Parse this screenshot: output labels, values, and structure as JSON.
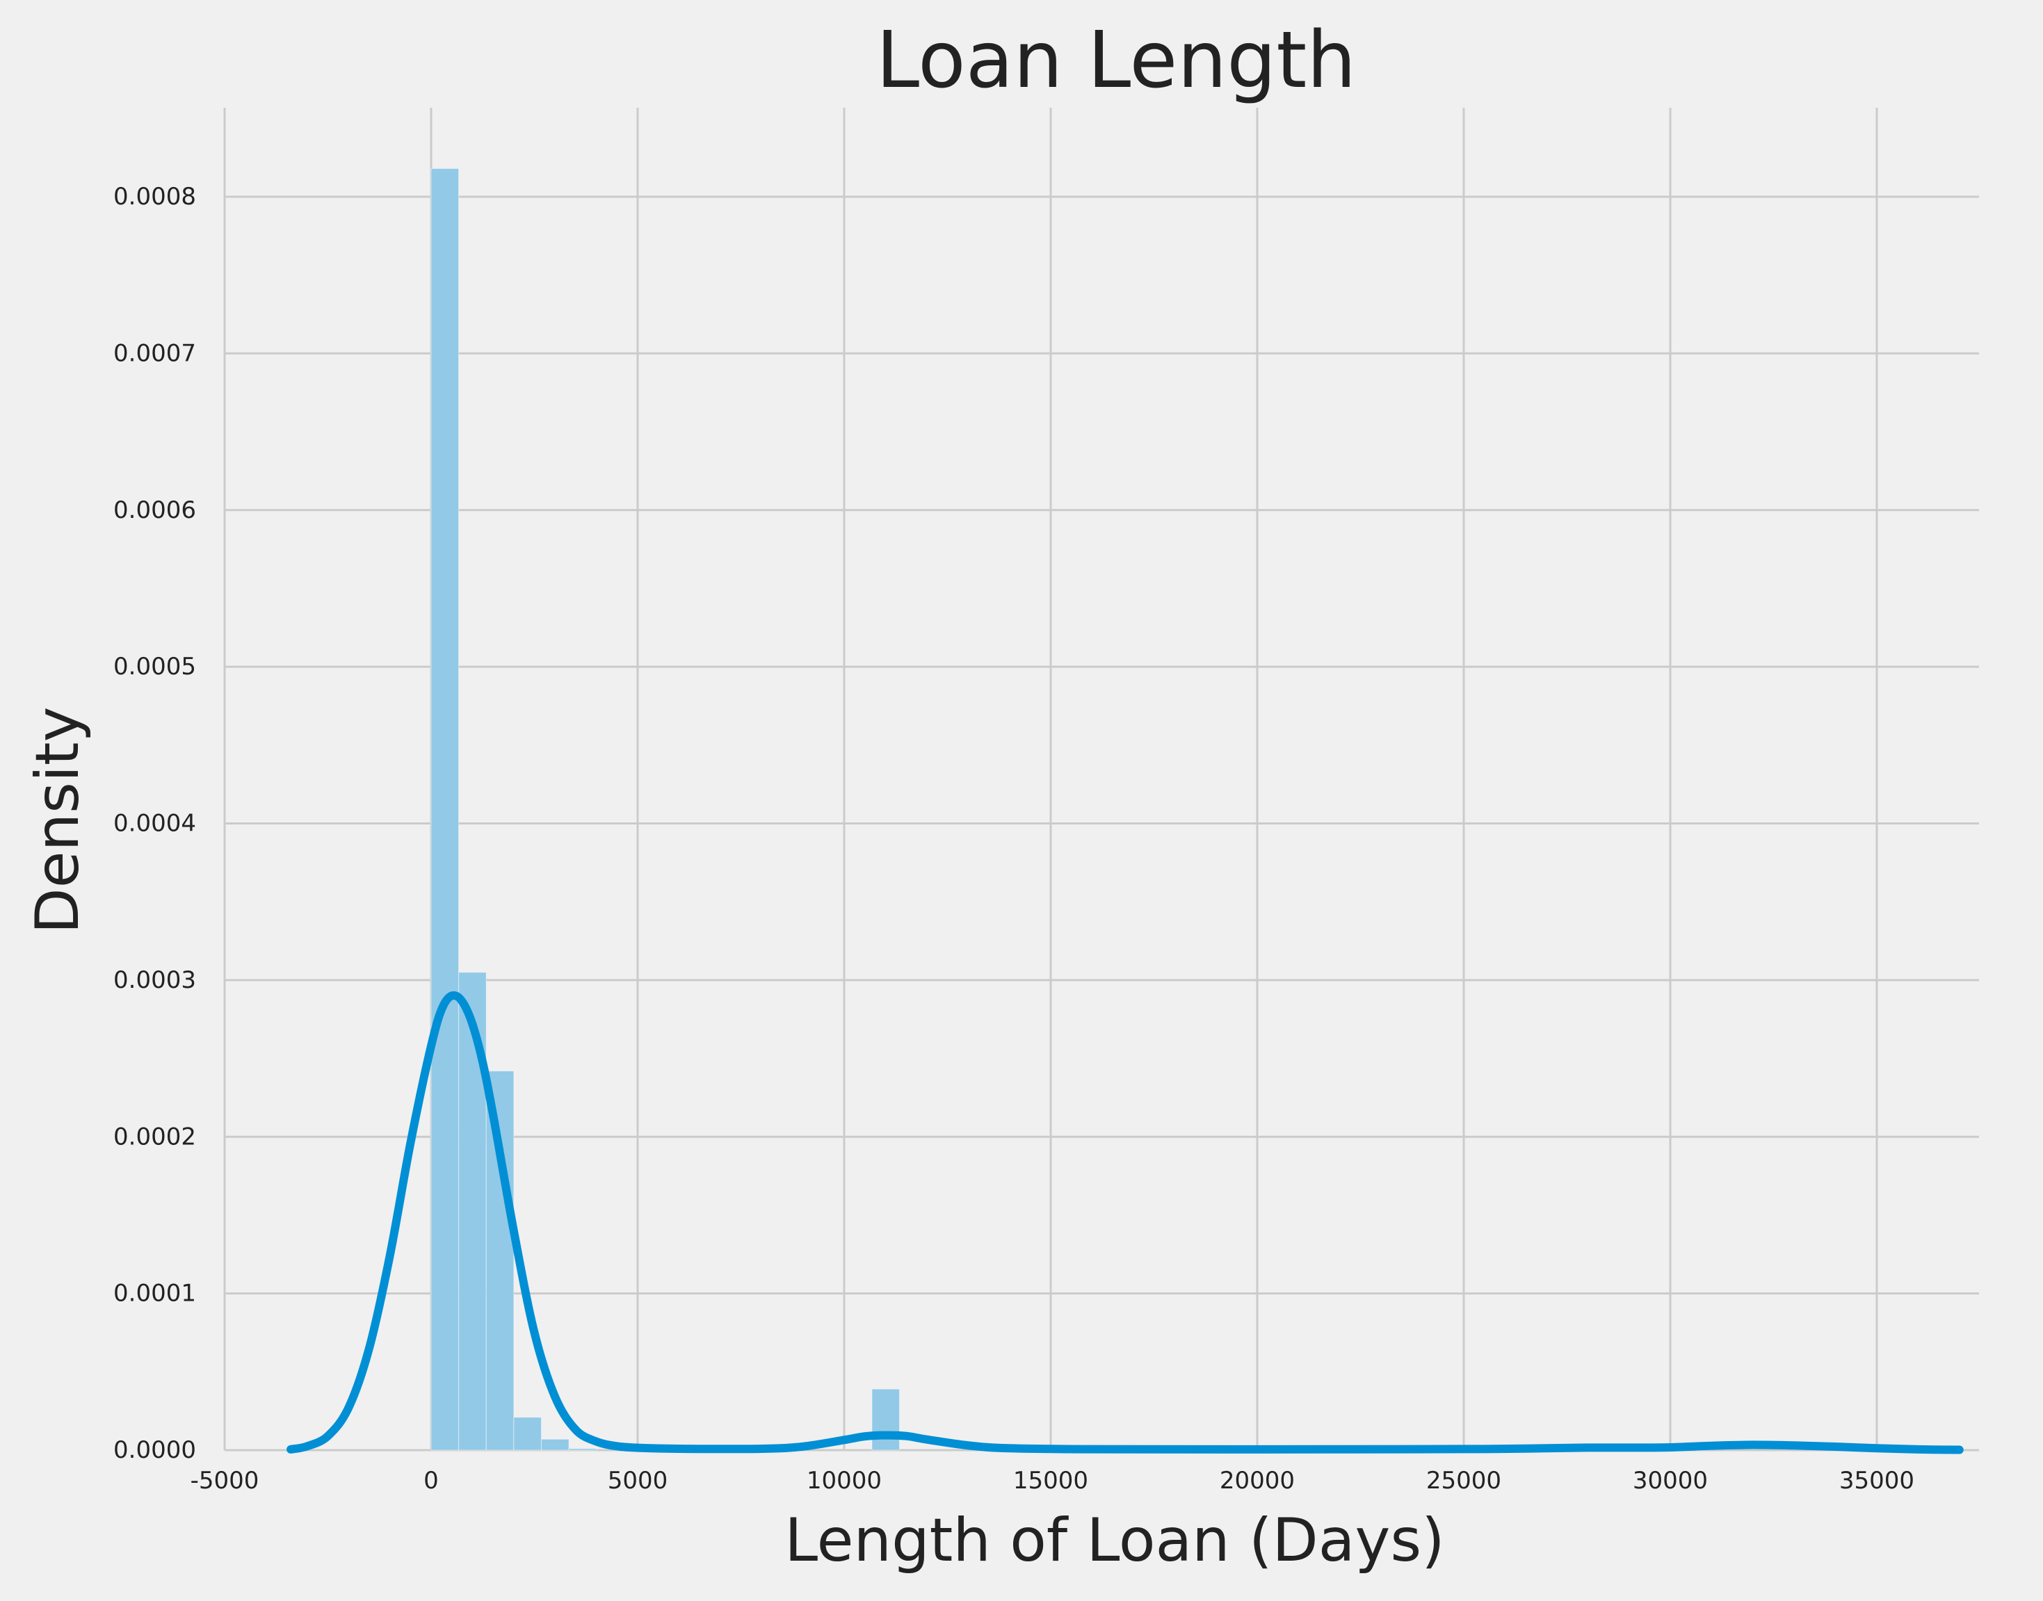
{
  "chart_data": {
    "type": "bar",
    "title": "Loan Length",
    "xlabel": "Length of Loan (Days)",
    "ylabel": "Density",
    "xlim": [
      -5000,
      37000
    ],
    "ylim": [
      0,
      0.00085
    ],
    "grid": true,
    "x_ticks": [
      -5000,
      0,
      5000,
      10000,
      15000,
      20000,
      25000,
      30000,
      35000
    ],
    "x_tick_labels": [
      "-5000",
      "0",
      "5000",
      "10000",
      "15000",
      "20000",
      "25000",
      "30000",
      "35000"
    ],
    "y_ticks": [
      0,
      0.0001,
      0.0002,
      0.0003,
      0.0004,
      0.0005,
      0.0006,
      0.0007,
      0.0008
    ],
    "y_tick_labels": [
      "0.0000",
      "0.0001",
      "0.0002",
      "0.0003",
      "0.0004",
      "0.0005",
      "0.0006",
      "0.0007",
      "0.0008"
    ],
    "histogram": {
      "bins": [
        {
          "x0": 0,
          "x1": 667,
          "density": 0.000818
        },
        {
          "x0": 667,
          "x1": 1334,
          "density": 0.000305
        },
        {
          "x0": 1334,
          "x1": 2001,
          "density": 0.000242
        },
        {
          "x0": 2001,
          "x1": 2668,
          "density": 2.1e-05
        },
        {
          "x0": 2668,
          "x1": 3335,
          "density": 7e-06
        },
        {
          "x0": 3335,
          "x1": 4002,
          "density": 1e-06
        },
        {
          "x0": 10672,
          "x1": 11339,
          "density": 3.9e-05
        }
      ]
    },
    "series": [
      {
        "type": "kde-line",
        "x": [
          -3400,
          -3000,
          -2500,
          -2000,
          -1500,
          -1000,
          -500,
          0,
          300,
          600,
          900,
          1200,
          1500,
          2000,
          2500,
          3000,
          3500,
          4000,
          4500,
          5000,
          6000,
          8000,
          9000,
          10000,
          10500,
          11000,
          11500,
          12000,
          13000,
          14000,
          16000,
          20000,
          25000,
          27000,
          28000,
          29000,
          30000,
          31000,
          32000,
          33000,
          34000,
          35000,
          36000,
          37000
        ],
        "y": [
          5e-07,
          2.5e-06,
          9e-06,
          2.7e-05,
          6.5e-05,
          0.000124,
          0.000196,
          0.000258,
          0.000284,
          0.00029,
          0.000279,
          0.000253,
          0.000214,
          0.00014,
          7.5e-05,
          3.4e-05,
          1.3e-05,
          5.5e-06,
          2.5e-06,
          1.5e-06,
          9e-07,
          9e-07,
          2.3e-06,
          6.5e-06,
          8.8e-06,
          9.5e-06,
          9e-06,
          6.8e-06,
          3e-06,
          1.2e-06,
          6e-07,
          5e-07,
          7e-07,
          1.2e-06,
          1.6e-06,
          1.6e-06,
          1.8e-06,
          2.8e-06,
          3.4e-06,
          3e-06,
          2.2e-06,
          1.2e-06,
          5e-07,
          2e-07
        ]
      }
    ],
    "colors": {
      "background": "#f0f0f0",
      "grid": "#cbcbcb",
      "histogram": "#92c9e6",
      "kde": "#008fd5",
      "text": "#222222"
    }
  }
}
